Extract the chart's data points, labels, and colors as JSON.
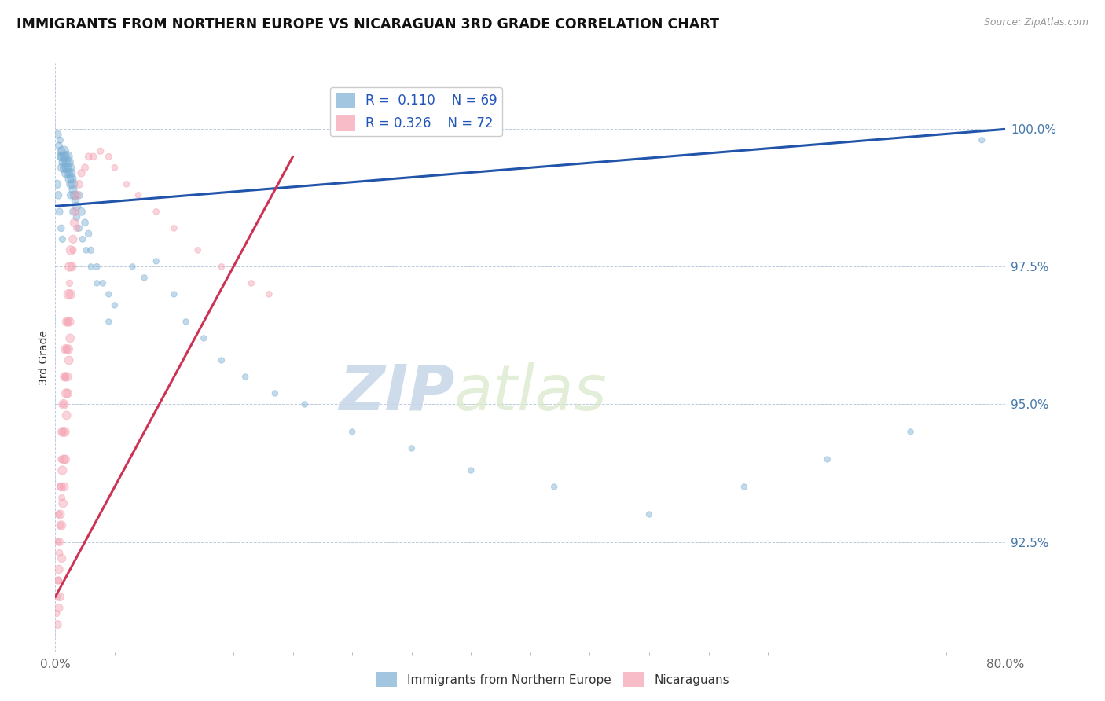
{
  "title": "IMMIGRANTS FROM NORTHERN EUROPE VS NICARAGUAN 3RD GRADE CORRELATION CHART",
  "source": "Source: ZipAtlas.com",
  "ylabel": "3rd Grade",
  "xlim": [
    0.0,
    80.0
  ],
  "ylim": [
    90.5,
    101.2
  ],
  "legend_blue_r": "R =  0.110",
  "legend_blue_n": "N = 69",
  "legend_pink_r": "R = 0.326",
  "legend_pink_n": "N = 72",
  "watermark_zip": "ZIP",
  "watermark_atlas": "atlas",
  "blue_color": "#7BAFD4",
  "pink_color": "#F4A0B0",
  "trend_blue": "#2255AA",
  "trend_pink": "#CC3355",
  "blue_x": [
    0.2,
    0.3,
    0.4,
    0.5,
    0.5,
    0.6,
    0.6,
    0.7,
    0.7,
    0.8,
    0.8,
    0.9,
    0.9,
    1.0,
    1.0,
    1.1,
    1.1,
    1.2,
    1.2,
    1.3,
    1.3,
    1.4,
    1.5,
    1.5,
    1.6,
    1.7,
    1.8,
    2.0,
    2.2,
    2.5,
    2.8,
    3.0,
    3.5,
    4.0,
    4.5,
    5.0,
    6.5,
    7.5,
    8.5,
    10.0,
    11.0,
    12.5,
    14.0,
    16.0,
    18.5,
    21.0,
    25.0,
    30.0,
    35.0,
    42.0,
    50.0,
    58.0,
    65.0,
    72.0,
    78.0,
    1.3,
    1.5,
    1.8,
    2.0,
    2.3,
    2.6,
    3.0,
    3.5,
    4.5,
    0.15,
    0.25,
    0.35,
    0.5,
    0.6
  ],
  "blue_y": [
    99.9,
    99.7,
    99.8,
    99.6,
    99.5,
    99.5,
    99.3,
    99.6,
    99.4,
    99.5,
    99.3,
    99.4,
    99.2,
    99.5,
    99.3,
    99.4,
    99.2,
    99.3,
    99.1,
    99.2,
    99.0,
    99.1,
    99.0,
    98.9,
    98.8,
    98.7,
    98.6,
    98.8,
    98.5,
    98.3,
    98.1,
    97.8,
    97.5,
    97.2,
    97.0,
    96.8,
    97.5,
    97.3,
    97.6,
    97.0,
    96.5,
    96.2,
    95.8,
    95.5,
    95.2,
    95.0,
    94.5,
    94.2,
    93.8,
    93.5,
    93.0,
    93.5,
    94.0,
    94.5,
    99.8,
    98.8,
    98.5,
    98.4,
    98.2,
    98.0,
    97.8,
    97.5,
    97.2,
    96.5,
    99.0,
    98.8,
    98.5,
    98.2,
    98.0
  ],
  "blue_size": [
    50,
    40,
    35,
    60,
    55,
    80,
    70,
    90,
    75,
    85,
    70,
    80,
    65,
    95,
    80,
    85,
    70,
    80,
    65,
    75,
    60,
    65,
    70,
    55,
    60,
    50,
    55,
    45,
    50,
    40,
    38,
    35,
    32,
    30,
    28,
    28,
    28,
    28,
    28,
    28,
    28,
    28,
    28,
    28,
    28,
    28,
    28,
    28,
    28,
    28,
    28,
    28,
    28,
    28,
    28,
    45,
    40,
    38,
    35,
    32,
    30,
    28,
    28,
    28,
    55,
    48,
    42,
    38,
    35
  ],
  "pink_x": [
    0.1,
    0.15,
    0.2,
    0.25,
    0.3,
    0.3,
    0.35,
    0.4,
    0.4,
    0.5,
    0.5,
    0.55,
    0.6,
    0.6,
    0.65,
    0.7,
    0.7,
    0.75,
    0.8,
    0.8,
    0.85,
    0.9,
    0.9,
    0.95,
    1.0,
    1.0,
    1.05,
    1.1,
    1.1,
    1.15,
    1.2,
    1.2,
    1.25,
    1.3,
    1.3,
    1.4,
    1.5,
    1.6,
    1.7,
    1.8,
    2.0,
    2.2,
    2.5,
    2.8,
    3.2,
    3.8,
    4.5,
    5.0,
    6.0,
    7.0,
    8.5,
    10.0,
    12.0,
    14.0,
    16.5,
    18.0,
    0.2,
    0.3,
    0.4,
    0.5,
    0.6,
    0.7,
    0.8,
    0.9,
    1.0,
    1.2,
    1.5,
    1.8,
    0.25,
    0.35,
    0.45,
    0.55
  ],
  "pink_y": [
    91.2,
    91.5,
    91.0,
    91.8,
    91.3,
    92.0,
    92.5,
    91.5,
    93.0,
    92.8,
    93.5,
    92.2,
    93.8,
    94.5,
    93.2,
    94.0,
    95.0,
    93.5,
    94.5,
    95.5,
    94.0,
    95.2,
    96.0,
    94.8,
    95.5,
    96.5,
    95.2,
    96.0,
    97.0,
    95.8,
    96.5,
    97.5,
    96.2,
    97.0,
    97.8,
    97.5,
    98.0,
    98.3,
    98.5,
    98.8,
    99.0,
    99.2,
    99.3,
    99.5,
    99.5,
    99.6,
    99.5,
    99.3,
    99.0,
    98.8,
    98.5,
    98.2,
    97.8,
    97.5,
    97.2,
    97.0,
    92.5,
    93.0,
    93.5,
    94.0,
    94.5,
    95.0,
    95.5,
    96.0,
    96.5,
    97.2,
    97.8,
    98.2,
    91.8,
    92.3,
    92.8,
    93.3
  ],
  "pink_size": [
    35,
    40,
    50,
    45,
    55,
    60,
    50,
    55,
    65,
    70,
    60,
    55,
    65,
    70,
    60,
    65,
    75,
    60,
    70,
    65,
    60,
    65,
    75,
    60,
    65,
    75,
    60,
    65,
    70,
    60,
    65,
    70,
    60,
    65,
    70,
    60,
    55,
    55,
    55,
    55,
    50,
    45,
    42,
    40,
    38,
    35,
    32,
    30,
    30,
    30,
    30,
    30,
    30,
    30,
    30,
    30,
    35,
    35,
    35,
    35,
    35,
    35,
    35,
    35,
    35,
    35,
    35,
    35,
    40,
    38,
    36,
    34
  ],
  "blue_trend_x0": 0.0,
  "blue_trend_y0": 98.6,
  "blue_trend_x1": 80.0,
  "blue_trend_y1": 100.0,
  "pink_trend_x0": 0.0,
  "pink_trend_y0": 91.5,
  "pink_trend_x1": 20.0,
  "pink_trend_y1": 99.5
}
